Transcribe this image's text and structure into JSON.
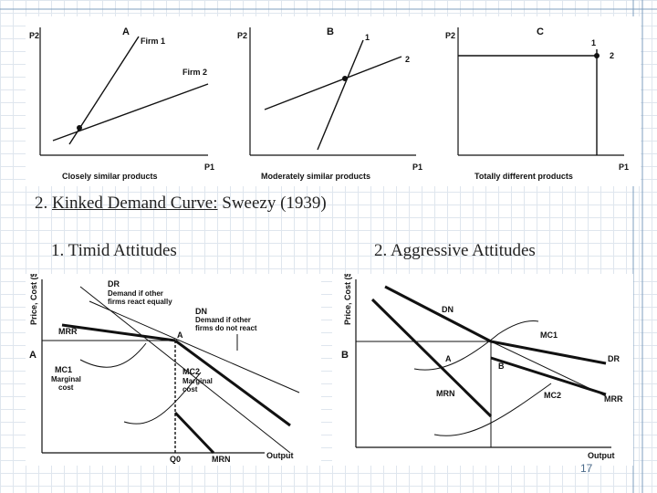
{
  "heading": {
    "number": "2.",
    "underlined": "Kinked Demand Curve:",
    "rest": "Sweezy (1939)"
  },
  "subheadings": {
    "left": "1. Timid Attitudes",
    "right": "2. Aggressive Attitudes"
  },
  "top_panels": [
    {
      "panel_label": "A",
      "y_axis": "P2",
      "x_axis": "P1",
      "line_labels": [
        "Firm 1",
        "Firm 2"
      ],
      "caption": "Closely similar products"
    },
    {
      "panel_label": "B",
      "y_axis": "P2",
      "x_axis": "P1",
      "line_labels": [
        "1",
        "2"
      ],
      "caption": "Moderately similar products"
    },
    {
      "panel_label": "C",
      "y_axis": "P2",
      "x_axis": "P1",
      "line_labels": [
        "1",
        "2"
      ],
      "caption": "Totally different products"
    }
  ],
  "left_diagram": {
    "y_axis": "Price, Cost ($)",
    "x_axis": "Output",
    "price_label": "A",
    "quantity_label": "Q0",
    "point_label": "A",
    "labels": {
      "dr": "DR",
      "dr_desc_1": "Demand if other",
      "dr_desc_2": "firms react equally",
      "dn": "DN",
      "dn_desc_1": "Demand if other",
      "dn_desc_2": "firms do not react",
      "mrr": "MRR",
      "mc1": "MC1",
      "mc1_desc_1": "Marginal",
      "mc1_desc_2": "cost",
      "mc2": "MC2",
      "mc2_desc_1": "Marginal",
      "mc2_desc_2": "cost",
      "mrn": "MRN"
    }
  },
  "right_diagram": {
    "y_axis": "Price, Cost ($)",
    "x_axis": "Output",
    "price_label": "B",
    "labels": {
      "dn": "DN",
      "mc1": "MC1",
      "dr": "DR",
      "a": "A",
      "b": "B",
      "mrn": "MRN",
      "mc2": "MC2",
      "mrr": "MRR"
    }
  },
  "page_number": "17",
  "colors": {
    "grid": "#dfe6ee",
    "frame": "#7f9fbf",
    "ink": "#111111"
  }
}
